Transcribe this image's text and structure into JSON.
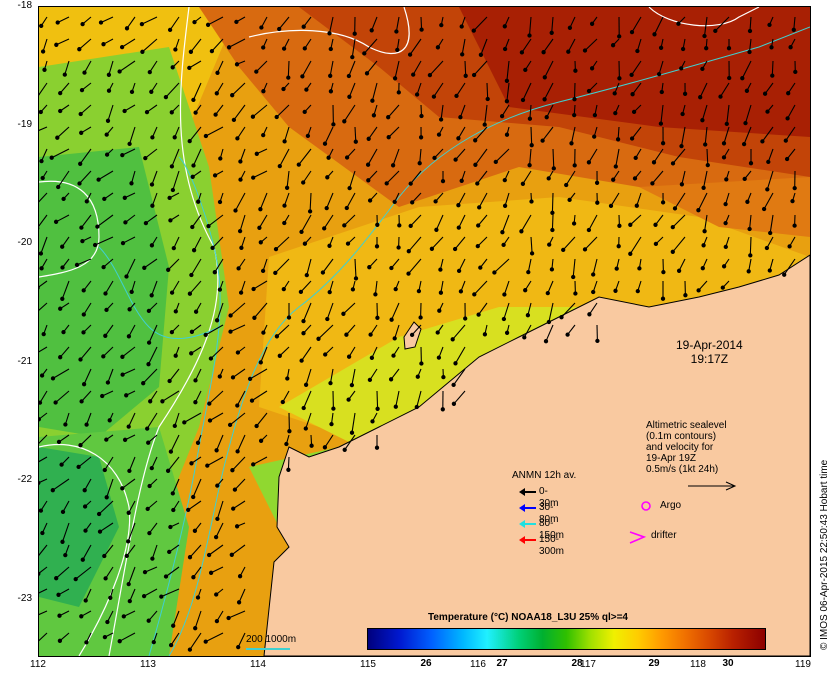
{
  "map": {
    "y_ticks": [
      "-18",
      "-19",
      "-20",
      "-21",
      "-22",
      "-23"
    ],
    "x_ticks": [
      "112",
      "113",
      "114",
      "115",
      "116",
      "117",
      "118",
      "119"
    ],
    "date_line1": "19-Apr-2014",
    "date_line2": "19:17Z",
    "altimetry_lines": [
      "Altimetric sealevel",
      "(0.1m contours)",
      "and velocity for",
      "19-Apr 19Z",
      "0.5m/s (1kt 24h)"
    ],
    "anmn_title": "ANMN 12h av.",
    "anmn_legend": [
      {
        "label": "0-30m",
        "color": "#000000"
      },
      {
        "label": "30-80m",
        "color": "#0000ff"
      },
      {
        "label": "80-150m",
        "color": "#20e0e0"
      },
      {
        "label": "150-300m",
        "color": "#ff0000"
      }
    ],
    "argo_label": "Argo",
    "argo_color": "#ff00ff",
    "drifter_label": "drifter",
    "drifter_color": "#ff00ff",
    "contour_legend": "200 1000m",
    "contour_color": "#40d0d0",
    "land_color": "#f9c9a0"
  },
  "colorbar": {
    "title": "Temperature (°C) NOAA18_L3U 25% ql>=4",
    "ticks": [
      "26",
      "27",
      "28",
      "29",
      "30"
    ]
  },
  "credit": "© IMOS 06-Apr-2015 22:50:43 Hobart time"
}
